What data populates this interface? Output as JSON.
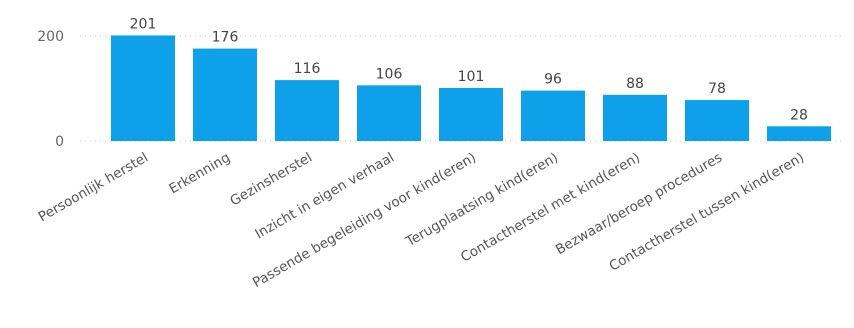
{
  "colors": {
    "bar": "#0ea0e8",
    "grid": "#c8c8c8",
    "text": "#555555"
  },
  "chart_data": {
    "type": "bar",
    "title": "",
    "xlabel": "",
    "ylabel": "",
    "ylim": [
      0,
      200
    ],
    "yticks": [
      0,
      200
    ],
    "grid": true,
    "categories": [
      "Persoonlijk herstel",
      "Erkenning",
      "Gezinsherstel",
      "Inzicht in eigen verhaal",
      "Passende begeleiding voor kind(eren)",
      "Terugplaatsing kind(eren)",
      "Contactherstel met kind(eren)",
      "Bezwaar/beroep procedures",
      "Contactherstel tussen kind(eren)"
    ],
    "values": [
      201,
      176,
      116,
      106,
      101,
      96,
      88,
      78,
      28
    ]
  }
}
